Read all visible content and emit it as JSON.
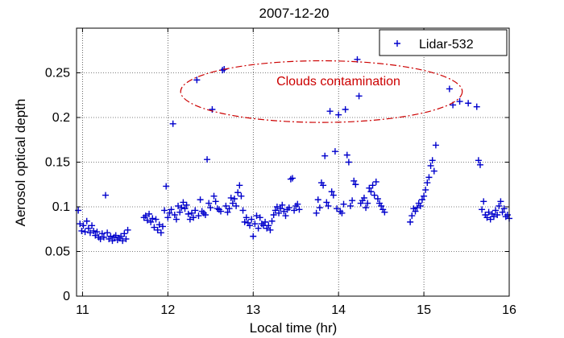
{
  "chart_data": {
    "type": "scatter",
    "title": "2007-12-20",
    "xlabel": "Local time (hr)",
    "ylabel": "Aerosol optical depth",
    "xlim": [
      10.93,
      16.0
    ],
    "ylim": [
      0,
      0.3
    ],
    "xticks": [
      11,
      12,
      13,
      14,
      15,
      16
    ],
    "yticks": [
      0,
      0.05,
      0.1,
      0.15,
      0.2,
      0.25
    ],
    "xtick_labels": [
      "11",
      "12",
      "13",
      "14",
      "15",
      "16"
    ],
    "ytick_labels": [
      "0",
      "0.05",
      "0.1",
      "0.15",
      "0.2",
      "0.25"
    ],
    "grid": true,
    "legend": {
      "position": "top-right",
      "entries": [
        "Lidar-532"
      ]
    },
    "marker": "+",
    "color": "#0000cc",
    "annotation": {
      "text": "Clouds contamination",
      "color": "#cc0000",
      "ellipse_center": [
        13.8,
        0.229
      ],
      "ellipse_radius": [
        1.65,
        0.0345
      ]
    },
    "series": [
      {
        "name": "Lidar-532",
        "points": [
          [
            10.95,
            0.096
          ],
          [
            10.97,
            0.081
          ],
          [
            10.99,
            0.073
          ],
          [
            11.01,
            0.079
          ],
          [
            11.03,
            0.072
          ],
          [
            11.05,
            0.084
          ],
          [
            11.07,
            0.076
          ],
          [
            11.09,
            0.071
          ],
          [
            11.11,
            0.079
          ],
          [
            11.13,
            0.073
          ],
          [
            11.15,
            0.068
          ],
          [
            11.17,
            0.072
          ],
          [
            11.19,
            0.066
          ],
          [
            11.21,
            0.064
          ],
          [
            11.23,
            0.07
          ],
          [
            11.25,
            0.066
          ],
          [
            11.27,
            0.113
          ],
          [
            11.29,
            0.071
          ],
          [
            11.31,
            0.064
          ],
          [
            11.33,
            0.067
          ],
          [
            11.35,
            0.062
          ],
          [
            11.37,
            0.066
          ],
          [
            11.39,
            0.068
          ],
          [
            11.41,
            0.063
          ],
          [
            11.43,
            0.065
          ],
          [
            11.45,
            0.067
          ],
          [
            11.47,
            0.062
          ],
          [
            11.49,
            0.07
          ],
          [
            11.51,
            0.064
          ],
          [
            11.53,
            0.074
          ],
          [
            11.72,
            0.088
          ],
          [
            11.74,
            0.09
          ],
          [
            11.76,
            0.085
          ],
          [
            11.78,
            0.092
          ],
          [
            11.8,
            0.083
          ],
          [
            11.82,
            0.087
          ],
          [
            11.84,
            0.077
          ],
          [
            11.86,
            0.086
          ],
          [
            11.88,
            0.074
          ],
          [
            11.9,
            0.08
          ],
          [
            11.92,
            0.071
          ],
          [
            11.94,
            0.078
          ],
          [
            11.96,
            0.096
          ],
          [
            11.98,
            0.123
          ],
          [
            12.0,
            0.088
          ],
          [
            12.02,
            0.093
          ],
          [
            12.04,
            0.097
          ],
          [
            12.06,
            0.193
          ],
          [
            12.08,
            0.091
          ],
          [
            12.1,
            0.086
          ],
          [
            12.12,
            0.101
          ],
          [
            12.14,
            0.094
          ],
          [
            12.16,
            0.099
          ],
          [
            12.18,
            0.105
          ],
          [
            12.2,
            0.098
          ],
          [
            12.22,
            0.102
          ],
          [
            12.24,
            0.092
          ],
          [
            12.26,
            0.086
          ],
          [
            12.28,
            0.093
          ],
          [
            12.3,
            0.088
          ],
          [
            12.32,
            0.096
          ],
          [
            12.34,
            0.242
          ],
          [
            12.36,
            0.09
          ],
          [
            12.38,
            0.108
          ],
          [
            12.4,
            0.095
          ],
          [
            12.42,
            0.093
          ],
          [
            12.44,
            0.091
          ],
          [
            12.46,
            0.153
          ],
          [
            12.48,
            0.104
          ],
          [
            12.5,
            0.099
          ],
          [
            12.52,
            0.209
          ],
          [
            12.54,
            0.112
          ],
          [
            12.56,
            0.106
          ],
          [
            12.58,
            0.098
          ],
          [
            12.6,
            0.097
          ],
          [
            12.62,
            0.095
          ],
          [
            12.64,
            0.253
          ],
          [
            12.66,
            0.254
          ],
          [
            12.68,
            0.101
          ],
          [
            12.7,
            0.094
          ],
          [
            12.72,
            0.098
          ],
          [
            12.74,
            0.11
          ],
          [
            12.76,
            0.104
          ],
          [
            12.78,
            0.109
          ],
          [
            12.8,
            0.101
          ],
          [
            12.82,
            0.116
          ],
          [
            12.84,
            0.124
          ],
          [
            12.86,
            0.112
          ],
          [
            12.88,
            0.096
          ],
          [
            12.9,
            0.083
          ],
          [
            12.92,
            0.088
          ],
          [
            12.94,
            0.082
          ],
          [
            12.96,
            0.079
          ],
          [
            12.98,
            0.086
          ],
          [
            13.0,
            0.067
          ],
          [
            13.02,
            0.081
          ],
          [
            13.04,
            0.09
          ],
          [
            13.06,
            0.076
          ],
          [
            13.08,
            0.088
          ],
          [
            13.1,
            0.081
          ],
          [
            13.12,
            0.079
          ],
          [
            13.14,
            0.083
          ],
          [
            13.16,
            0.076
          ],
          [
            13.18,
            0.079
          ],
          [
            13.2,
            0.074
          ],
          [
            13.22,
            0.084
          ],
          [
            13.24,
            0.091
          ],
          [
            13.26,
            0.096
          ],
          [
            13.28,
            0.1
          ],
          [
            13.3,
            0.093
          ],
          [
            13.32,
            0.098
          ],
          [
            13.34,
            0.102
          ],
          [
            13.36,
            0.095
          ],
          [
            13.38,
            0.09
          ],
          [
            13.4,
            0.097
          ],
          [
            13.42,
            0.099
          ],
          [
            13.44,
            0.131
          ],
          [
            13.46,
            0.132
          ],
          [
            13.48,
            0.096
          ],
          [
            13.5,
            0.101
          ],
          [
            13.52,
            0.103
          ],
          [
            13.54,
            0.097
          ],
          [
            13.74,
            0.093
          ],
          [
            13.76,
            0.108
          ],
          [
            13.78,
            0.099
          ],
          [
            13.8,
            0.127
          ],
          [
            13.82,
            0.124
          ],
          [
            13.84,
            0.157
          ],
          [
            13.86,
            0.105
          ],
          [
            13.88,
            0.101
          ],
          [
            13.9,
            0.207
          ],
          [
            13.92,
            0.117
          ],
          [
            13.94,
            0.113
          ],
          [
            13.96,
            0.162
          ],
          [
            13.98,
            0.098
          ],
          [
            14.0,
            0.203
          ],
          [
            14.02,
            0.095
          ],
          [
            14.04,
            0.093
          ],
          [
            14.06,
            0.103
          ],
          [
            14.08,
            0.209
          ],
          [
            14.1,
            0.158
          ],
          [
            14.12,
            0.15
          ],
          [
            14.14,
            0.101
          ],
          [
            14.16,
            0.107
          ],
          [
            14.18,
            0.129
          ],
          [
            14.2,
            0.125
          ],
          [
            14.22,
            0.265
          ],
          [
            14.24,
            0.224
          ],
          [
            14.26,
            0.104
          ],
          [
            14.28,
            0.107
          ],
          [
            14.3,
            0.11
          ],
          [
            14.32,
            0.099
          ],
          [
            14.34,
            0.104
          ],
          [
            14.36,
            0.121
          ],
          [
            14.38,
            0.117
          ],
          [
            14.4,
            0.124
          ],
          [
            14.42,
            0.113
          ],
          [
            14.44,
            0.128
          ],
          [
            14.46,
            0.109
          ],
          [
            14.48,
            0.104
          ],
          [
            14.5,
            0.101
          ],
          [
            14.52,
            0.097
          ],
          [
            14.54,
            0.094
          ],
          [
            14.84,
            0.083
          ],
          [
            14.86,
            0.09
          ],
          [
            14.88,
            0.098
          ],
          [
            14.9,
            0.095
          ],
          [
            14.92,
            0.099
          ],
          [
            14.94,
            0.104
          ],
          [
            14.96,
            0.101
          ],
          [
            14.98,
            0.108
          ],
          [
            15.0,
            0.112
          ],
          [
            15.02,
            0.119
          ],
          [
            15.04,
            0.127
          ],
          [
            15.06,
            0.133
          ],
          [
            15.08,
            0.146
          ],
          [
            15.1,
            0.152
          ],
          [
            15.12,
            0.14
          ],
          [
            15.14,
            0.169
          ],
          [
            15.3,
            0.232
          ],
          [
            15.34,
            0.214
          ],
          [
            15.42,
            0.218
          ],
          [
            15.52,
            0.216
          ],
          [
            15.62,
            0.212
          ],
          [
            15.64,
            0.152
          ],
          [
            15.66,
            0.147
          ],
          [
            15.68,
            0.097
          ],
          [
            15.7,
            0.106
          ],
          [
            15.72,
            0.091
          ],
          [
            15.74,
            0.088
          ],
          [
            15.76,
            0.094
          ],
          [
            15.78,
            0.086
          ],
          [
            15.8,
            0.092
          ],
          [
            15.82,
            0.089
          ],
          [
            15.84,
            0.096
          ],
          [
            15.86,
            0.091
          ],
          [
            15.88,
            0.101
          ],
          [
            15.9,
            0.106
          ],
          [
            15.92,
            0.094
          ],
          [
            15.94,
            0.098
          ],
          [
            15.96,
            0.089
          ],
          [
            15.98,
            0.091
          ],
          [
            16.0,
            0.087
          ]
        ]
      }
    ]
  }
}
